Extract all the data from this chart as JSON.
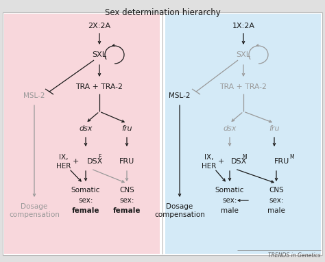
{
  "title": "Sex determination hierarchy",
  "bg_left": "#f8d7dc",
  "bg_right": "#d4eaf7",
  "bg_outer": "#e0e0e0",
  "black": "#1a1a1a",
  "gray": "#999999",
  "dgray": "#555555",
  "trends_text": "TRENDS in Genetics",
  "left": {
    "top_label": "2X:2A",
    "sxl": "SXL",
    "tra": "TRA + TRA-2",
    "msl2": "MSL-2",
    "dsx": "dsx",
    "fru": "fru",
    "ix_her_1": "IX,",
    "ix_her_2": "HER",
    "plus": "+",
    "dsx_label": "DSX",
    "dsx_sup": "F",
    "fru_label": "FRU",
    "out1_line1": "Dosage",
    "out1_line2": "compensation",
    "out2_line1": "Somatic",
    "out2_line2": "sex:",
    "out2_line3": "female",
    "out3_line1": "CNS",
    "out3_line2": "sex:",
    "out3_line3": "female"
  },
  "right": {
    "top_label": "1X:2A",
    "sxl": "SXL",
    "tra": "TRA + TRA-2",
    "msl2": "MSL-2",
    "dsx": "dsx",
    "fru": "fru",
    "ix_her_1": "IX,",
    "ix_her_2": "HER",
    "plus": "+",
    "dsx_label": "DSX",
    "dsx_sup": "M",
    "fru_label": "FRU",
    "fru_sup": "M",
    "out1_line1": "Dosage",
    "out1_line2": "compensation",
    "out2_line1": "Somatic",
    "out2_line2": "sex:",
    "out2_line3": "male",
    "out3_line1": "CNS",
    "out3_line2": "sex:",
    "out3_line3": "male"
  }
}
